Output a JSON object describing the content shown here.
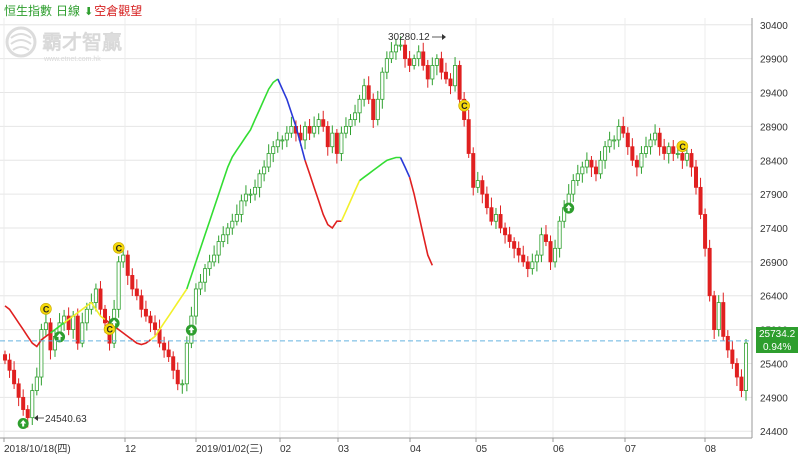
{
  "header": {
    "index_name": "恒生指數",
    "period": "日線",
    "signal_text": "空倉觀望",
    "signal_icon": "arrow-down-icon",
    "index_color": "#2e9e2e",
    "signal_color": "#d62020"
  },
  "watermark": {
    "brand": "霸才智贏",
    "url": "www.etnet.com.hk"
  },
  "chart_data": {
    "type": "candlestick",
    "title": "",
    "xlabel": "",
    "ylabel": "",
    "ylim": [
      24300,
      30500
    ],
    "y_ticks": [
      24400,
      24900,
      25400,
      25900,
      26400,
      26900,
      27400,
      27900,
      28400,
      28900,
      29400,
      29900,
      30400
    ],
    "x_tick_labels": [
      "2018/10/18(四)",
      "12",
      "2019/01/02(三)",
      "02",
      "03",
      "04",
      "05",
      "06",
      "07",
      "08"
    ],
    "last_price": "25734.2",
    "last_change": "0.94%",
    "annotations": [
      {
        "text": "30280.12",
        "type": "high"
      },
      {
        "text": "24540.63",
        "type": "low"
      }
    ],
    "colors": {
      "up": "#2ea02e",
      "down": "#e02020",
      "trend_down": "#e02020",
      "trend_up": "#33dd33",
      "trend_neutral": "#f2f02a",
      "trend_blue": "#2a3ad8",
      "price_line": "#66b3e0",
      "price_tag": "#2e9e2e"
    },
    "series": [
      {
        "name": "",
        "note": "approximate daily closes read from chart",
        "closes": [
          25450,
          25300,
          25100,
          24900,
          24720,
          24600,
          25000,
          25200,
          25900,
          26000,
          25600,
          25800,
          26000,
          26100,
          25900,
          26100,
          25700,
          26000,
          26200,
          26300,
          26500,
          26200,
          26000,
          25700,
          26200,
          26900,
          27000,
          26700,
          26500,
          26400,
          26200,
          26100,
          26000,
          25900,
          25700,
          25600,
          25500,
          25300,
          25100,
          25100,
          25700,
          26100,
          26500,
          26600,
          26800,
          26900,
          27000,
          27200,
          27300,
          27400,
          27500,
          27600,
          27800,
          27900,
          27900,
          28000,
          28200,
          28300,
          28500,
          28600,
          28700,
          28700,
          28800,
          28900,
          28800,
          28700,
          28900,
          28800,
          28900,
          29000,
          28900,
          28600,
          28800,
          28500,
          28800,
          28900,
          29000,
          29100,
          29300,
          29500,
          29300,
          29000,
          29300,
          29700,
          29900,
          30000,
          30100,
          30100,
          29900,
          29800,
          29900,
          30000,
          29800,
          29600,
          29800,
          29900,
          29700,
          29600,
          29500,
          29800,
          29300,
          29000,
          28500,
          28000,
          28100,
          27900,
          27700,
          27500,
          27600,
          27400,
          27300,
          27200,
          27100,
          27000,
          26900,
          26800,
          26900,
          27000,
          27300,
          27200,
          26900,
          27100,
          27500,
          27700,
          27900,
          28100,
          28200,
          28300,
          28400,
          28300,
          28200,
          28400,
          28600,
          28700,
          28700,
          28900,
          28800,
          28600,
          28400,
          28300,
          28500,
          28600,
          28700,
          28800,
          28600,
          28500,
          28600,
          28500,
          28500,
          28400,
          28500,
          28300,
          28000,
          27600,
          27100,
          26400,
          25900,
          26300,
          25800,
          25600,
          25400,
          25200,
          25000,
          25700
        ]
      }
    ],
    "trend_segments": [
      {
        "color": "trend_down",
        "values": [
          26250,
          26200,
          26100,
          26000,
          25900,
          25800,
          25700,
          25650,
          25750,
          25800,
          25850
        ]
      },
      {
        "color": "trend_up",
        "values": [
          25850,
          25900,
          25950,
          26000
        ]
      },
      {
        "color": "trend_neutral",
        "values": [
          26000,
          26050,
          26100,
          26150,
          26200,
          26250,
          26300,
          26200,
          26100,
          26050
        ]
      },
      {
        "color": "trend_down",
        "values": [
          26050,
          26000,
          25950,
          25900,
          25850,
          25800,
          25750,
          25700,
          25680,
          25700,
          25750
        ]
      },
      {
        "color": "trend_neutral",
        "values": [
          25750,
          25800,
          25900,
          26000,
          26100,
          26200,
          26300,
          26400,
          26500
        ]
      },
      {
        "color": "trend_up",
        "values": [
          26500,
          26700,
          26900,
          27100,
          27300,
          27500,
          27700,
          27900,
          28100,
          28300,
          28450,
          28550,
          28650,
          28750,
          28850,
          29000,
          29150,
          29300,
          29450,
          29550,
          29600
        ]
      },
      {
        "color": "trend_blue",
        "values": [
          29600,
          29450,
          29300,
          29100,
          28900,
          28650,
          28400
        ]
      },
      {
        "color": "trend_down",
        "values": [
          28400,
          28200,
          28000,
          27800,
          27600,
          27450,
          27400,
          27500,
          27500
        ]
      },
      {
        "color": "trend_neutral",
        "values": [
          27500,
          27650,
          27800,
          27950,
          28100
        ]
      },
      {
        "color": "trend_up",
        "values": [
          28100,
          28150,
          28200,
          28250,
          28300,
          28350,
          28400,
          28420,
          28440,
          28440
        ]
      },
      {
        "color": "trend_blue",
        "values": [
          28440,
          28300,
          28150
        ]
      },
      {
        "color": "trend_down",
        "values": [
          28150,
          27900,
          27600,
          27300,
          27000,
          26850
        ]
      }
    ],
    "signals": [
      {
        "type": "buy",
        "label": "",
        "index": 4
      },
      {
        "type": "close",
        "label": "C",
        "index": 9
      },
      {
        "type": "buy",
        "label": "",
        "index": 12
      },
      {
        "type": "buy",
        "label": "",
        "index": 24
      },
      {
        "type": "close",
        "label": "C",
        "index": 25
      },
      {
        "type": "close",
        "label": "C",
        "index": 23
      },
      {
        "type": "buy",
        "label": "",
        "index": 41
      },
      {
        "type": "close",
        "label": "C",
        "index": 101
      },
      {
        "type": "buy",
        "label": "",
        "index": 124
      },
      {
        "type": "close",
        "label": "C",
        "index": 149
      }
    ]
  }
}
